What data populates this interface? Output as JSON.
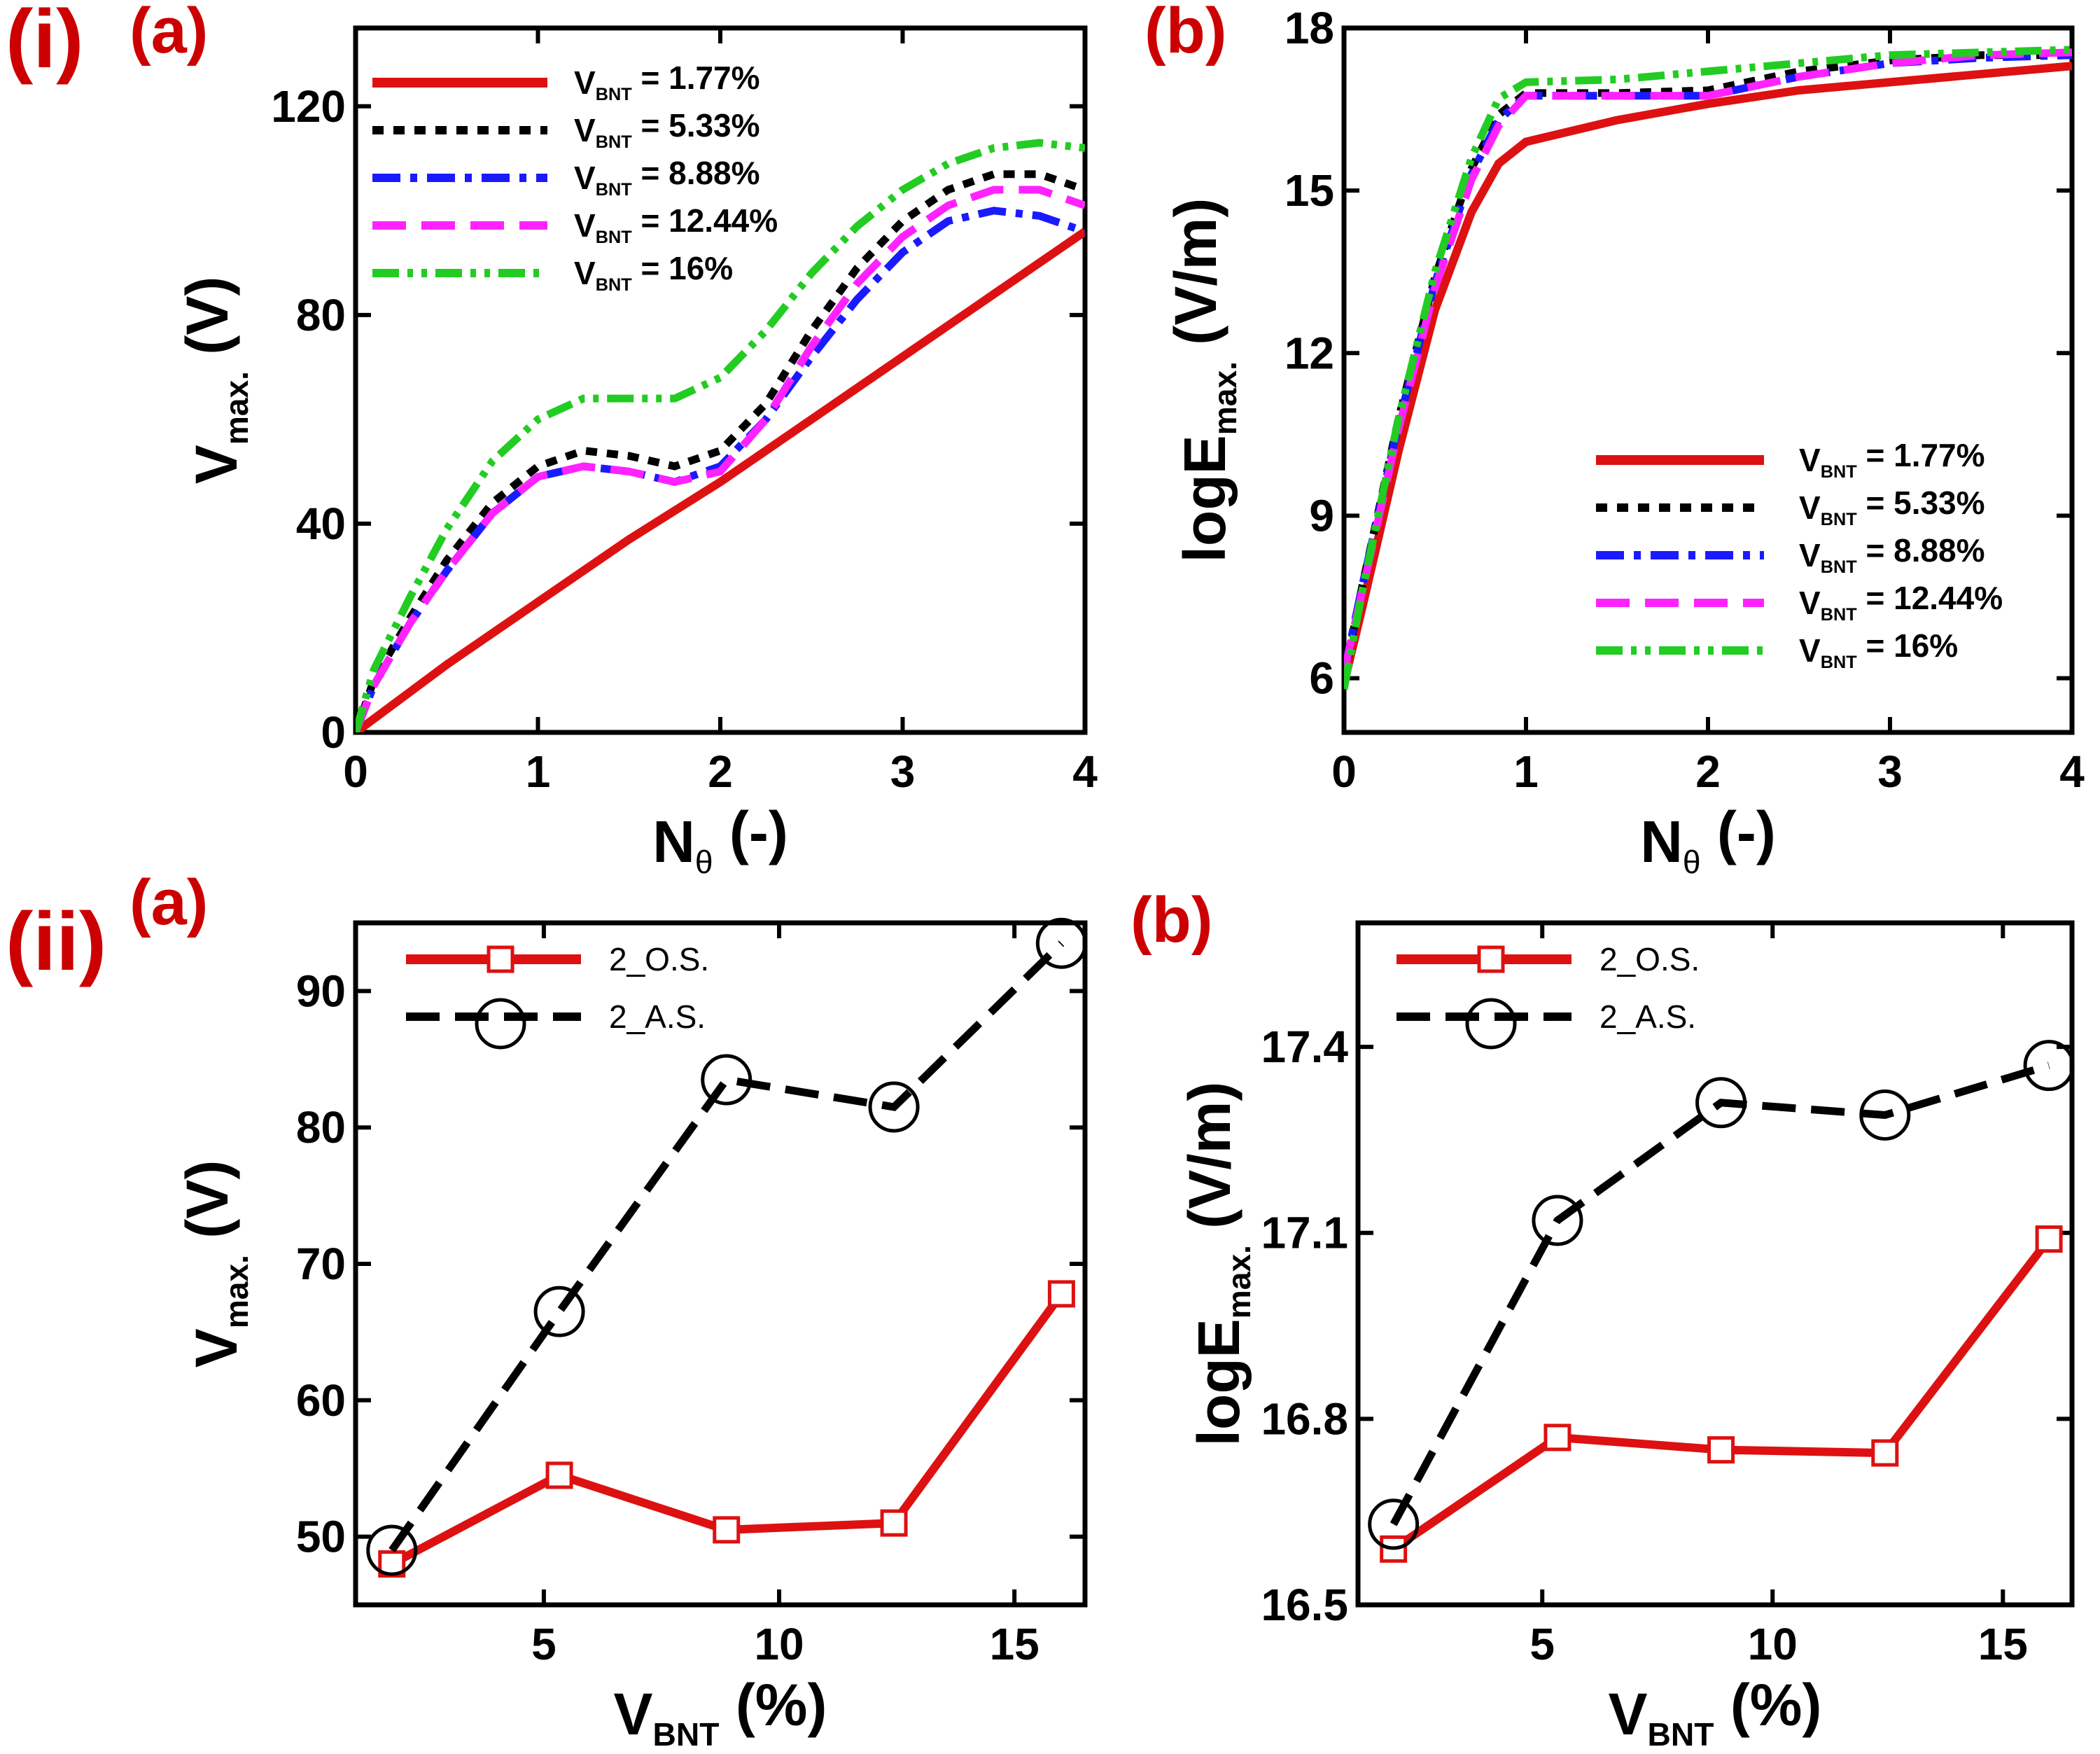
{
  "row_labels": [
    "(i)",
    "(ii)"
  ],
  "colors": {
    "red": "#dd1111",
    "black": "#000000",
    "blue": "#1a1aff",
    "magenta": "#ff22ff",
    "green": "#22cc22",
    "label_red": "#cc0000"
  },
  "chart_data": [
    {
      "panel": "(a)",
      "type": "line",
      "xlabel": "N",
      "xlabel_sub": "θ",
      "xlabel_tail": " (-)",
      "ylabel": "V",
      "ylabel_sub": "max.",
      "ylabel_tail": " (V)",
      "xlim": [
        0,
        4
      ],
      "ylim": [
        0,
        135
      ],
      "xticks": [
        0,
        1,
        2,
        3,
        4
      ],
      "yticks": [
        0,
        40,
        80,
        120
      ],
      "legend_position": "top-left",
      "series": [
        {
          "name": "V",
          "name_sub": "BNT",
          "name_tail": " = 1.77%",
          "color": "#dd1111",
          "style": "solid",
          "x": [
            0,
            0.5,
            1,
            1.5,
            2,
            2.5,
            3,
            3.5,
            4
          ],
          "y": [
            0,
            13,
            25,
            37,
            48,
            60,
            72,
            84,
            96
          ]
        },
        {
          "name": "V",
          "name_sub": "BNT",
          "name_tail": " = 5.33%",
          "color": "#000000",
          "style": "dotted",
          "x": [
            0,
            0.1,
            0.3,
            0.5,
            0.75,
            1,
            1.25,
            1.5,
            1.75,
            2,
            2.25,
            2.5,
            2.75,
            3,
            3.25,
            3.5,
            3.75,
            4
          ],
          "y": [
            0,
            10,
            22,
            33,
            44,
            51,
            54,
            53,
            51,
            54,
            63,
            77,
            89,
            98,
            104,
            107,
            107,
            104
          ]
        },
        {
          "name": "V",
          "name_sub": "BNT",
          "name_tail": " = 8.88%",
          "color": "#1a1aff",
          "style": "dashdot",
          "x": [
            0,
            0.1,
            0.3,
            0.5,
            0.75,
            1,
            1.25,
            1.5,
            1.75,
            2,
            2.25,
            2.5,
            2.75,
            3,
            3.25,
            3.5,
            3.75,
            4
          ],
          "y": [
            0,
            9,
            21,
            31,
            42,
            49,
            51,
            50,
            48,
            51,
            60,
            72,
            83,
            92,
            98,
            100,
            99,
            96
          ]
        },
        {
          "name": "V",
          "name_sub": "BNT",
          "name_tail": " = 12.44%",
          "color": "#ff22ff",
          "style": "dashed",
          "x": [
            0,
            0.1,
            0.3,
            0.5,
            0.75,
            1,
            1.25,
            1.5,
            1.75,
            2,
            2.25,
            2.5,
            2.75,
            3,
            3.25,
            3.5,
            3.75,
            4
          ],
          "y": [
            0,
            9,
            21,
            31,
            42,
            49,
            51,
            50,
            48,
            50,
            60,
            74,
            86,
            95,
            101,
            104,
            104,
            101
          ]
        },
        {
          "name": "V",
          "name_sub": "BNT",
          "name_tail": " = 16%",
          "color": "#22cc22",
          "style": "dashdotdot",
          "x": [
            0,
            0.1,
            0.3,
            0.5,
            0.75,
            1,
            1.25,
            1.5,
            1.75,
            2,
            2.25,
            2.5,
            2.75,
            3,
            3.25,
            3.5,
            3.75,
            4
          ],
          "y": [
            0,
            12,
            26,
            39,
            52,
            60,
            64,
            64,
            64,
            68,
            77,
            88,
            97,
            104,
            109,
            112,
            113,
            112
          ]
        }
      ]
    },
    {
      "panel": "(b)",
      "type": "line",
      "xlabel": "N",
      "xlabel_sub": "θ",
      "xlabel_tail": " (-)",
      "ylabel": "logE",
      "ylabel_sub": "max.",
      "ylabel_tail": " (V/m)",
      "xlim": [
        0,
        4
      ],
      "ylim": [
        5,
        18
      ],
      "xticks": [
        0,
        1,
        2,
        3,
        4
      ],
      "yticks": [
        6,
        9,
        12,
        15,
        18
      ],
      "legend_position": "bottom-right",
      "series": [
        {
          "name": "V",
          "name_sub": "BNT",
          "name_tail": " = 1.77%",
          "color": "#dd1111",
          "style": "solid",
          "x": [
            0,
            0.1,
            0.3,
            0.5,
            0.7,
            0.85,
            1,
            1.5,
            2,
            2.5,
            3,
            3.5,
            4
          ],
          "y": [
            5.9,
            7.3,
            10.2,
            12.8,
            14.6,
            15.5,
            15.9,
            16.3,
            16.6,
            16.85,
            17.0,
            17.15,
            17.3
          ]
        },
        {
          "name": "V",
          "name_sub": "BNT",
          "name_tail": " = 5.33%",
          "color": "#000000",
          "style": "dotted",
          "x": [
            0,
            0.1,
            0.3,
            0.5,
            0.7,
            0.85,
            1,
            1.5,
            2,
            2.5,
            3,
            3.5,
            4
          ],
          "y": [
            6.0,
            7.7,
            10.8,
            13.4,
            15.4,
            16.4,
            16.8,
            16.8,
            16.85,
            17.2,
            17.4,
            17.5,
            17.5
          ]
        },
        {
          "name": "V",
          "name_sub": "BNT",
          "name_tail": " = 8.88%",
          "color": "#1a1aff",
          "style": "dashdot",
          "x": [
            0,
            0.1,
            0.3,
            0.5,
            0.7,
            0.85,
            1,
            1.5,
            2,
            2.5,
            3,
            3.5,
            4
          ],
          "y": [
            6.1,
            7.7,
            10.7,
            13.3,
            15.3,
            16.3,
            16.75,
            16.75,
            16.75,
            17.1,
            17.35,
            17.45,
            17.5
          ]
        },
        {
          "name": "V",
          "name_sub": "BNT",
          "name_tail": " = 12.44%",
          "color": "#ff22ff",
          "style": "dashed",
          "x": [
            0,
            0.1,
            0.3,
            0.5,
            0.7,
            0.85,
            1,
            1.5,
            2,
            2.5,
            3,
            3.5,
            4
          ],
          "y": [
            6.1,
            7.6,
            10.6,
            13.2,
            15.2,
            16.2,
            16.75,
            16.75,
            16.75,
            17.1,
            17.35,
            17.5,
            17.55
          ]
        },
        {
          "name": "V",
          "name_sub": "BNT",
          "name_tail": " = 16%",
          "color": "#22cc22",
          "style": "dashdotdot",
          "x": [
            0,
            0.1,
            0.3,
            0.5,
            0.7,
            0.85,
            1,
            1.5,
            2,
            2.5,
            3,
            3.5,
            4
          ],
          "y": [
            5.8,
            7.6,
            10.8,
            13.5,
            15.6,
            16.7,
            17.0,
            17.05,
            17.2,
            17.35,
            17.5,
            17.55,
            17.6
          ]
        }
      ]
    },
    {
      "panel": "(a)",
      "type": "line",
      "xlabel": "V",
      "xlabel_sub": "BNT",
      "xlabel_tail": " (%)",
      "ylabel": "V",
      "ylabel_sub": "max.",
      "ylabel_tail": " (V)",
      "xlim": [
        1,
        16.5
      ],
      "ylim": [
        45,
        95
      ],
      "xticks": [
        5,
        10,
        15
      ],
      "yticks": [
        50,
        60,
        70,
        80,
        90
      ],
      "legend_position": "top-left",
      "series": [
        {
          "name": "2_O.S.",
          "color": "#dd1111",
          "style": "solid",
          "marker": "square",
          "x": [
            1.77,
            5.33,
            8.88,
            12.44,
            16
          ],
          "y": [
            48.0,
            54.5,
            50.5,
            51.0,
            67.8
          ]
        },
        {
          "name": "2_A.S.",
          "color": "#000000",
          "style": "dashed",
          "marker": "circle",
          "x": [
            1.77,
            5.33,
            8.88,
            12.44,
            16
          ],
          "y": [
            49.0,
            66.5,
            83.5,
            81.5,
            93.5
          ]
        }
      ]
    },
    {
      "panel": "(b)",
      "type": "line",
      "xlabel": "V",
      "xlabel_sub": "BNT",
      "xlabel_tail": " (%)",
      "ylabel": "logE",
      "ylabel_sub": "max.",
      "ylabel_tail": " (V/m)",
      "xlim": [
        1,
        16.5
      ],
      "ylim": [
        16.5,
        17.6
      ],
      "xticks": [
        5,
        10,
        15
      ],
      "yticks": [
        16.5,
        16.8,
        17.1,
        17.4
      ],
      "ytick_labels": [
        "16.5",
        "16.8",
        "17.1",
        "17.4"
      ],
      "legend_position": "top-left",
      "series": [
        {
          "name": "2_O.S.",
          "color": "#dd1111",
          "style": "solid",
          "marker": "square",
          "x": [
            1.77,
            5.33,
            8.88,
            12.44,
            16
          ],
          "y": [
            16.59,
            16.77,
            16.75,
            16.745,
            17.09
          ]
        },
        {
          "name": "2_A.S.",
          "color": "#000000",
          "style": "dashed",
          "marker": "circle",
          "x": [
            1.77,
            5.33,
            8.88,
            12.44,
            16
          ],
          "y": [
            16.63,
            17.12,
            17.31,
            17.29,
            17.37
          ]
        }
      ]
    }
  ]
}
